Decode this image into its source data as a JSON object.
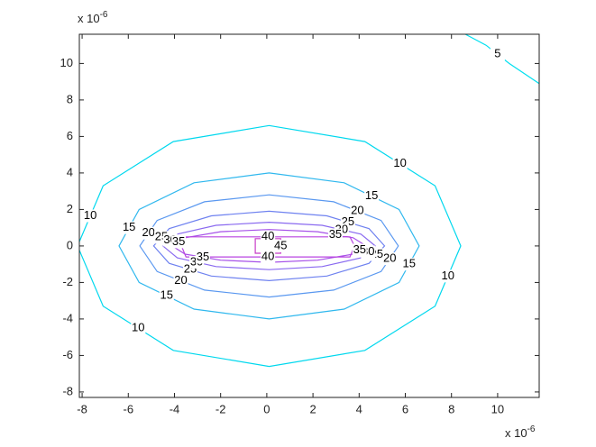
{
  "chart_data": {
    "type": "contour",
    "x_multiplier": {
      "base": "x 10",
      "exponent": "-6"
    },
    "y_multiplier": {
      "base": "x 10",
      "exponent": "-6"
    },
    "xlim": [
      -8.12,
      11.8
    ],
    "ylim": [
      -8.3,
      11.6
    ],
    "xticks": [
      -8,
      -6,
      -4,
      -2,
      0,
      2,
      4,
      6,
      8,
      10
    ],
    "yticks": [
      -8,
      -6,
      -4,
      -2,
      0,
      2,
      4,
      6,
      8,
      10
    ],
    "contours": [
      {
        "level": 5,
        "color": "#00e0f0",
        "closed": false,
        "x": [
          8.6,
          9.5,
          10.5,
          11.8
        ],
        "y": [
          11.6,
          11.0,
          10.0,
          8.9
        ]
      },
      {
        "level": 10,
        "color": "#00d8ee",
        "closed": true,
        "x": [
          8.4,
          7.29,
          4.25,
          0.1,
          -4.05,
          -7.09,
          -8.2,
          -7.09,
          -4.05,
          0.1,
          4.25,
          7.29
        ],
        "y": [
          0,
          3.3,
          5.72,
          6.6,
          5.72,
          3.3,
          0,
          -3.3,
          -5.72,
          -6.6,
          -5.72,
          -3.3
        ]
      },
      {
        "level": 15,
        "color": "#30b8ee",
        "closed": true,
        "x": [
          6.6,
          5.73,
          3.35,
          0.1,
          -3.15,
          -5.53,
          -6.4,
          -5.53,
          -3.15,
          0.1,
          3.35,
          5.73
        ],
        "y": [
          0,
          2,
          3.46,
          4,
          3.46,
          2,
          0,
          -2,
          -3.46,
          -4,
          -3.46,
          -2
        ]
      },
      {
        "level": 20,
        "color": "#5a98f0",
        "closed": true,
        "x": [
          5.7,
          4.95,
          2.9,
          0.1,
          -2.7,
          -4.75,
          -5.5,
          -4.75,
          -2.7,
          0.1,
          2.9,
          4.95
        ],
        "y": [
          0,
          1.4,
          2.42,
          2.8,
          2.42,
          1.4,
          0,
          -1.4,
          -2.42,
          -2.8,
          -2.42,
          -1.4
        ]
      },
      {
        "level": 25,
        "color": "#6f82f0",
        "closed": true,
        "x": [
          5.1,
          4.43,
          2.6,
          0.1,
          -2.4,
          -4.23,
          -4.9,
          -4.23,
          -2.4,
          0.1,
          2.6,
          4.43
        ],
        "y": [
          0,
          0.95,
          1.65,
          1.9,
          1.65,
          0.95,
          0,
          -0.95,
          -1.65,
          -1.9,
          -1.65,
          -0.95
        ]
      },
      {
        "level": 30,
        "color": "#8a6af0",
        "closed": true,
        "x": [
          4.7,
          4.08,
          2.4,
          0.1,
          -2.2,
          -3.88,
          -4.5,
          -3.88,
          -2.2,
          0.1,
          2.4,
          4.08
        ],
        "y": [
          0,
          0.65,
          1.13,
          1.3,
          1.13,
          0.65,
          0,
          -0.65,
          -1.13,
          -1.3,
          -1.13,
          -0.65
        ]
      },
      {
        "level": 35,
        "color": "#a650e8",
        "closed": true,
        "x": [
          4.3,
          3.74,
          2.2,
          0.1,
          -2.0,
          -3.54,
          -4.1,
          -3.54,
          -2.0,
          0.1,
          2.2,
          3.74
        ],
        "y": [
          0,
          0.45,
          0.78,
          0.9,
          0.78,
          0.45,
          0,
          -0.45,
          -0.78,
          -0.9,
          -0.78,
          -0.45
        ]
      },
      {
        "level": 40,
        "color": "#b844e0",
        "closed": true,
        "x": [
          -3.5,
          3.6,
          3.8,
          3.6,
          -3.5,
          -3.7
        ],
        "y": [
          0.5,
          0.5,
          0,
          -0.6,
          -0.6,
          0
        ]
      },
      {
        "level": 45,
        "color": "#c83cc8",
        "closed": true,
        "x": [
          -0.5,
          0.6,
          0.6,
          -0.5
        ],
        "y": [
          0.4,
          0.4,
          -0.4,
          -0.4
        ]
      }
    ]
  }
}
